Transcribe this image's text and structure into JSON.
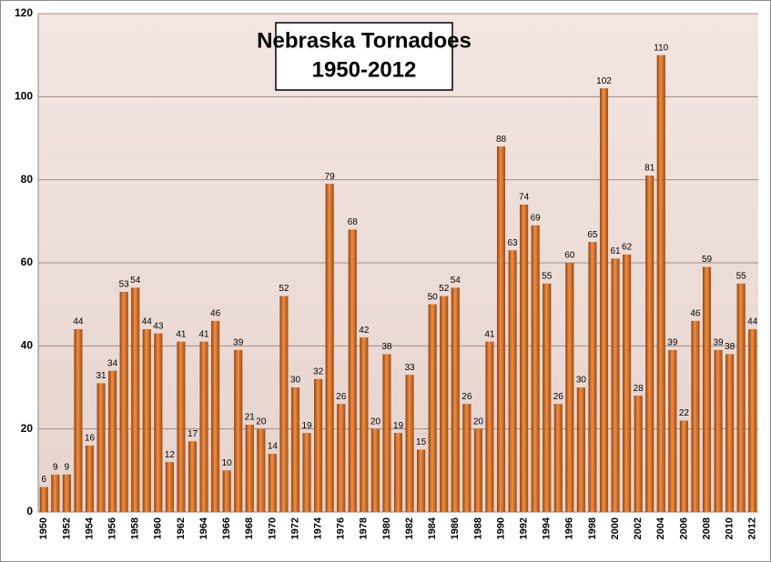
{
  "chart_data": {
    "type": "bar",
    "title": "Nebraska Tornadoes",
    "subtitle": "1950-2012",
    "categories": [
      "1950",
      null,
      "1952",
      null,
      "1954",
      null,
      "1956",
      null,
      "1958",
      null,
      "1960",
      null,
      "1962",
      null,
      "1964",
      null,
      "1966",
      null,
      "1968",
      null,
      "1970",
      null,
      "1972",
      null,
      "1974",
      null,
      "1976",
      null,
      "1978",
      null,
      "1980",
      null,
      "1982",
      null,
      "1984",
      null,
      "1986",
      null,
      "1988",
      null,
      "1990",
      null,
      "1992",
      null,
      "1994",
      null,
      "1996",
      null,
      "1998",
      null,
      "2000",
      null,
      "2002",
      null,
      "2004",
      null,
      "2006",
      null,
      "2008",
      null,
      "2010",
      null,
      "2012"
    ],
    "values": [
      6,
      9,
      9,
      44,
      16,
      31,
      34,
      53,
      54,
      44,
      43,
      12,
      41,
      17,
      41,
      46,
      10,
      39,
      21,
      20,
      14,
      52,
      30,
      19,
      32,
      79,
      26,
      68,
      42,
      20,
      38,
      19,
      33,
      15,
      50,
      52,
      54,
      26,
      20,
      41,
      88,
      63,
      74,
      69,
      55,
      26,
      60,
      30,
      65,
      102,
      61,
      62,
      28,
      81,
      110,
      39,
      22,
      46,
      59,
      39,
      38,
      55,
      44
    ],
    "color": "#c55a11",
    "ylim": [
      0,
      120
    ],
    "yticks": [
      0,
      20,
      40,
      60,
      80,
      100,
      120
    ],
    "grid": true
  }
}
